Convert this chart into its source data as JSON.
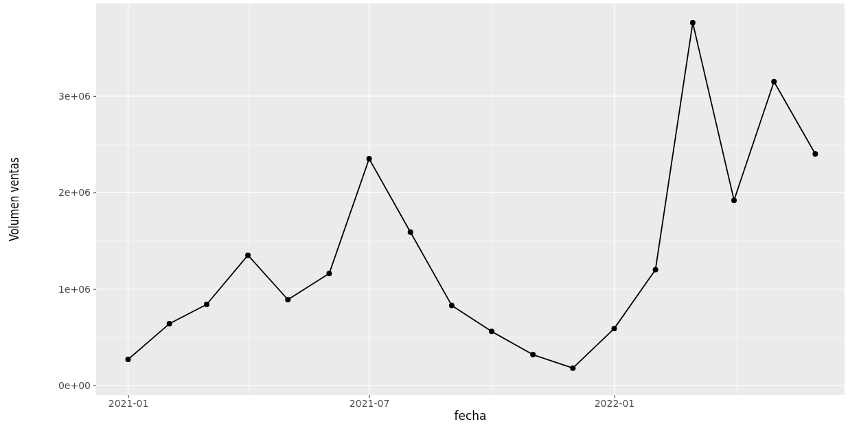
{
  "chart_data": {
    "type": "line",
    "xlabel": "fecha",
    "ylabel": "Volumen ventas",
    "x": [
      "2021-01",
      "2021-02",
      "2021-03",
      "2021-04",
      "2021-05",
      "2021-06",
      "2021-07",
      "2021-08",
      "2021-09",
      "2021-10",
      "2021-11",
      "2021-12",
      "2022-01",
      "2022-02",
      "2022-03",
      "2022-04",
      "2022-05",
      "2022-06"
    ],
    "series": [
      {
        "color": "#000000",
        "values": [
          270000,
          640000,
          840000,
          1350000,
          890000,
          1160000,
          2350000,
          1590000,
          830000,
          560000,
          320000,
          180000,
          590000,
          1200000,
          3760000,
          1920000,
          3150000,
          2400000
        ]
      }
    ],
    "xlim": [
      "2020-12-08",
      "2022-06-23"
    ],
    "xticks": [
      "2021-01",
      "2021-07",
      "2022-01"
    ],
    "ylim": [
      -100000,
      3960000
    ],
    "yticks": [
      {
        "value": 0,
        "label": "0e+00"
      },
      {
        "value": 1000000,
        "label": "1e+06"
      },
      {
        "value": 2000000,
        "label": "2e+06"
      },
      {
        "value": 3000000,
        "label": "3e+06"
      }
    ],
    "grid": true,
    "marker": "circle",
    "line_style": "solid"
  }
}
